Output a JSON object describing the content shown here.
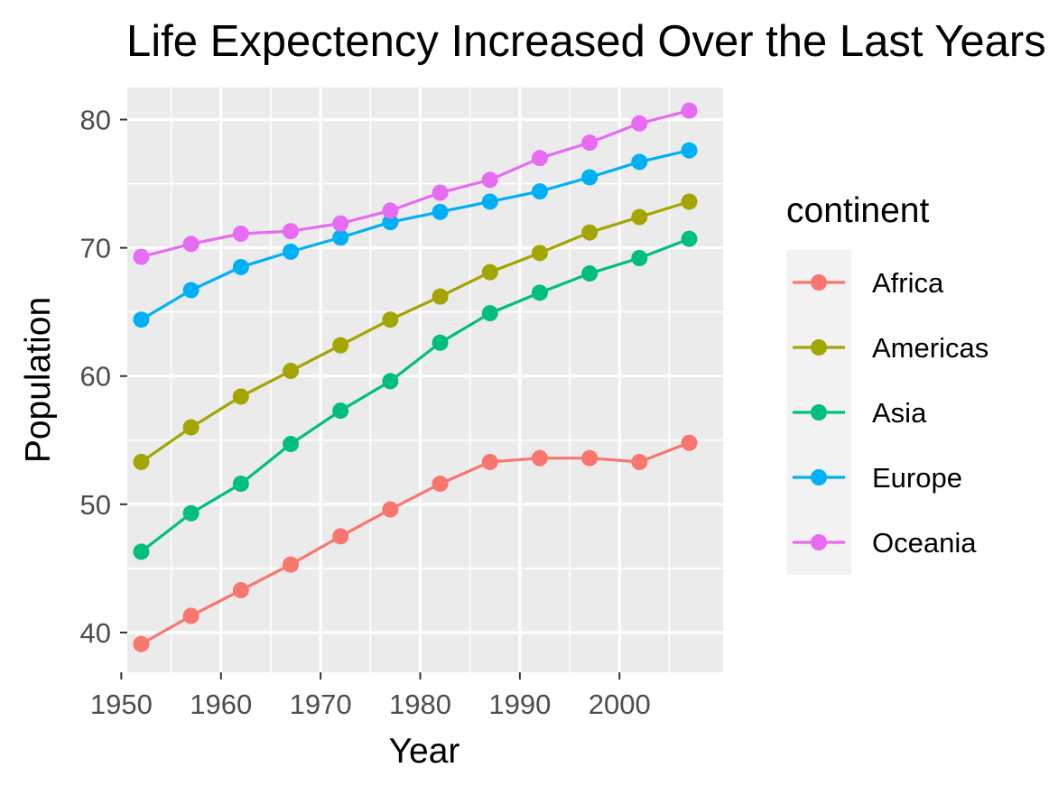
{
  "chart_data": {
    "type": "line",
    "title": "Life Expectency Increased Over the Last Years",
    "xlabel": "Year",
    "ylabel": "Population",
    "x": [
      1952,
      1957,
      1962,
      1967,
      1972,
      1977,
      1982,
      1987,
      1992,
      1997,
      2002,
      2007
    ],
    "xlim": [
      1950.6,
      2010.4
    ],
    "ylim": [
      36.9,
      82.5
    ],
    "x_ticks": [
      1950,
      1960,
      1970,
      1980,
      1990,
      2000
    ],
    "y_ticks": [
      40,
      50,
      60,
      70,
      80
    ],
    "grid": true,
    "legend": {
      "title": "continent",
      "position": "right"
    },
    "series": [
      {
        "name": "Africa",
        "color": "#F8766D",
        "values": [
          39.1,
          41.3,
          43.3,
          45.3,
          47.5,
          49.6,
          51.6,
          53.3,
          53.6,
          53.6,
          53.3,
          54.8
        ]
      },
      {
        "name": "Americas",
        "color": "#A3A500",
        "values": [
          53.3,
          56.0,
          58.4,
          60.4,
          62.4,
          64.4,
          66.2,
          68.1,
          69.6,
          71.2,
          72.4,
          73.6
        ]
      },
      {
        "name": "Asia",
        "color": "#00BF7D",
        "values": [
          46.3,
          49.3,
          51.6,
          54.7,
          57.3,
          59.6,
          62.6,
          64.9,
          66.5,
          68.0,
          69.2,
          70.7
        ]
      },
      {
        "name": "Europe",
        "color": "#00B0F6",
        "values": [
          64.4,
          66.7,
          68.5,
          69.7,
          70.8,
          72.0,
          72.8,
          73.6,
          74.4,
          75.5,
          76.7,
          77.6
        ]
      },
      {
        "name": "Oceania",
        "color": "#E76BF3",
        "values": [
          69.3,
          70.3,
          71.1,
          71.3,
          71.9,
          72.9,
          74.3,
          75.3,
          77.0,
          78.2,
          79.7,
          80.7
        ]
      }
    ],
    "colors": {
      "panel_background": "#EBEBEB",
      "grid_major": "#FFFFFF",
      "legend_key_background": "#F2F2F2",
      "tick_text": "#4D4D4D",
      "tick_mark": "#333333"
    }
  }
}
